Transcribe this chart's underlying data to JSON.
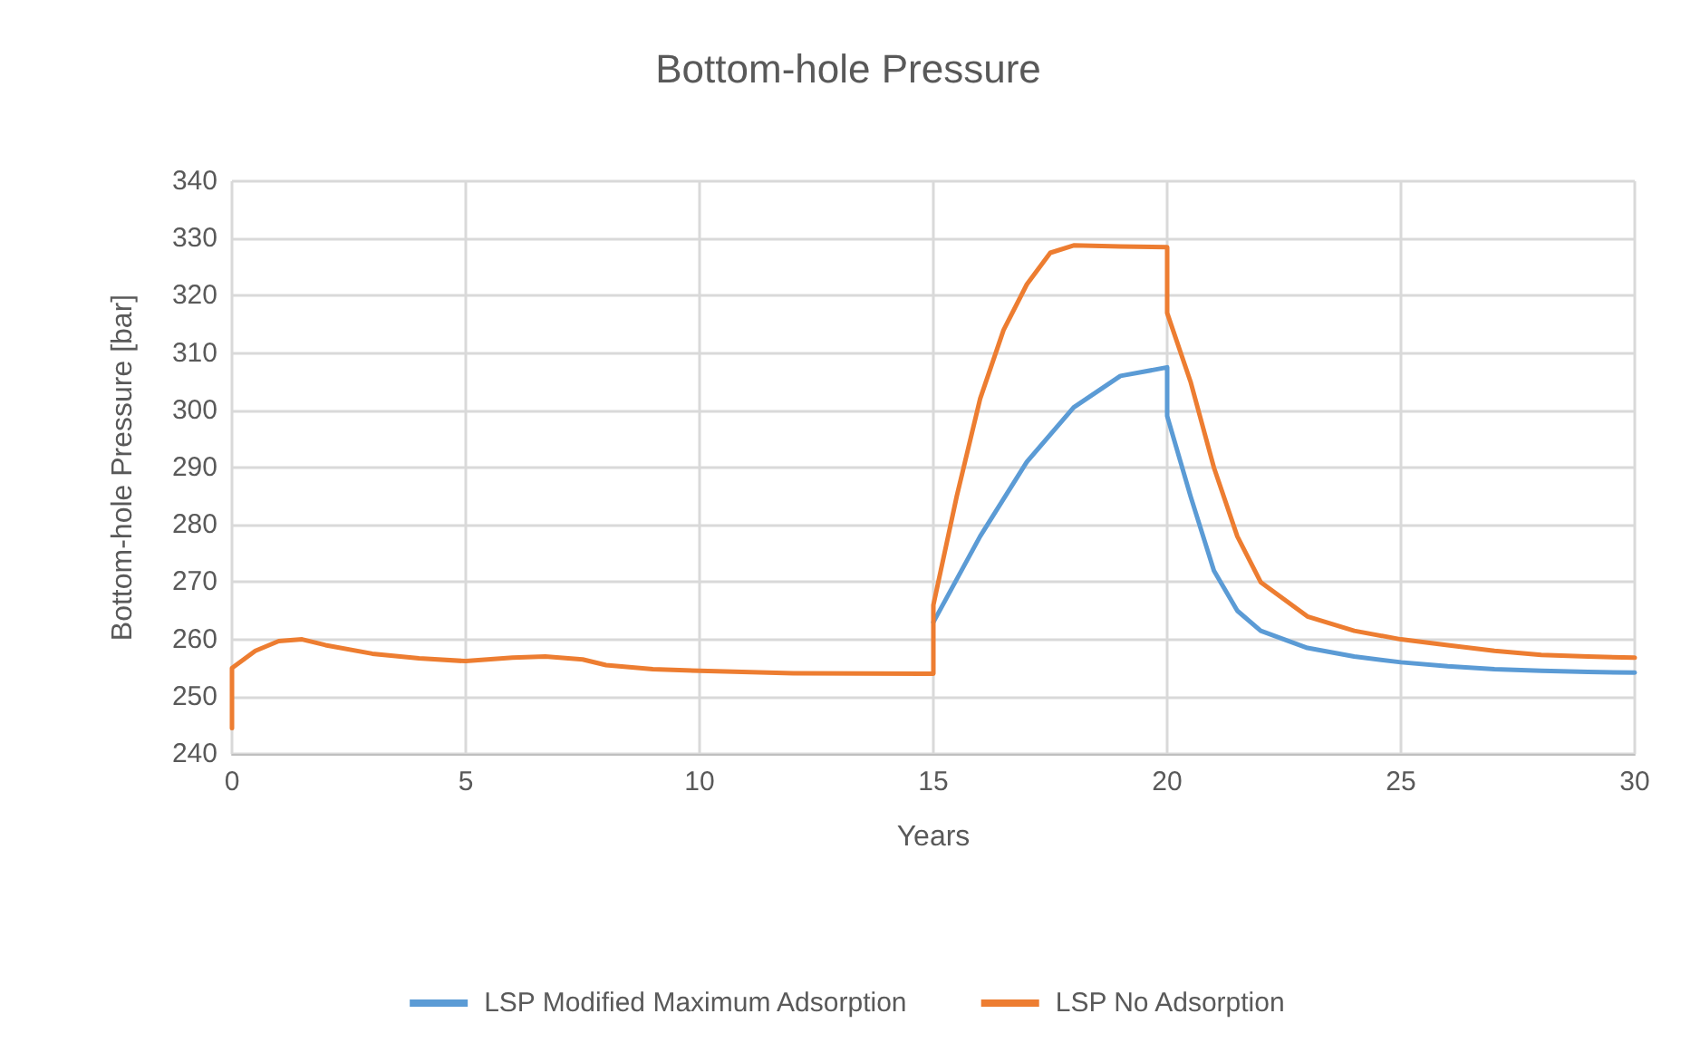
{
  "chart_data": {
    "type": "line",
    "title": "Bottom-hole Pressure",
    "xlabel": "Years",
    "ylabel": "Bottom-hole Pressure [bar]",
    "xlim": [
      0,
      30
    ],
    "xticks": [
      0,
      5,
      10,
      15,
      20,
      25,
      30
    ],
    "ylim": [
      240,
      340
    ],
    "yticks": [
      240,
      250,
      260,
      270,
      280,
      290,
      300,
      310,
      320,
      330,
      340
    ],
    "grid": true,
    "legend": "bottom",
    "marker": "none",
    "line_style": "solid",
    "series": [
      {
        "name": "LSP Modified Maximum Adsorption",
        "color": "#5b9bd5",
        "x": [
          15,
          16,
          17,
          18,
          19,
          20,
          20,
          20.5,
          21,
          21.5,
          22,
          23,
          24,
          25,
          26,
          27,
          28,
          29,
          30
        ],
        "values": [
          263,
          278,
          291,
          300.5,
          306,
          307.5,
          299,
          285,
          272,
          265,
          261.5,
          258.5,
          257,
          256,
          255.3,
          254.8,
          254.5,
          254.3,
          254.2
        ]
      },
      {
        "name": "LSP No Adsorption",
        "color": "#ed7d31",
        "x": [
          0,
          0,
          0.5,
          1,
          1.5,
          2,
          3,
          4,
          5,
          6,
          6.7,
          7.5,
          8,
          9,
          10,
          12,
          15,
          15,
          15.5,
          16,
          16.5,
          17,
          17.5,
          18,
          19,
          20,
          20,
          20.5,
          21,
          21.5,
          22,
          23,
          24,
          25,
          26,
          27,
          28,
          29,
          30
        ],
        "values": [
          244.5,
          255,
          258,
          259.7,
          260,
          259,
          257.5,
          256.7,
          256.2,
          256.8,
          257,
          256.5,
          255.5,
          254.8,
          254.5,
          254.1,
          254,
          266,
          285,
          302,
          314,
          322,
          327.5,
          328.8,
          328.6,
          328.5,
          317,
          305,
          290,
          278,
          270,
          264,
          261.5,
          260,
          259,
          258,
          257.3,
          257,
          256.8
        ]
      }
    ]
  }
}
